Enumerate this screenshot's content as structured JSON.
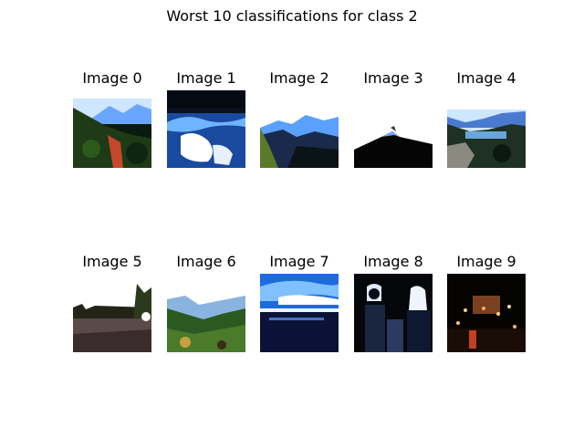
{
  "figure": {
    "title": "Worst 10 classifications for class 2"
  },
  "images": [
    {
      "label": "Image 0",
      "scene": "mountain-trail"
    },
    {
      "label": "Image 1",
      "scene": "water-rocks"
    },
    {
      "label": "Image 2",
      "scene": "mountain-ridge"
    },
    {
      "label": "Image 3",
      "scene": "snowy-peak"
    },
    {
      "label": "Image 4",
      "scene": "lake-valley"
    },
    {
      "label": "Image 5",
      "scene": "gravel-trees"
    },
    {
      "label": "Image 6",
      "scene": "green-valley"
    },
    {
      "label": "Image 7",
      "scene": "sea-sky"
    },
    {
      "label": "Image 8",
      "scene": "people-dark"
    },
    {
      "label": "Image 9",
      "scene": "night-lights"
    }
  ]
}
